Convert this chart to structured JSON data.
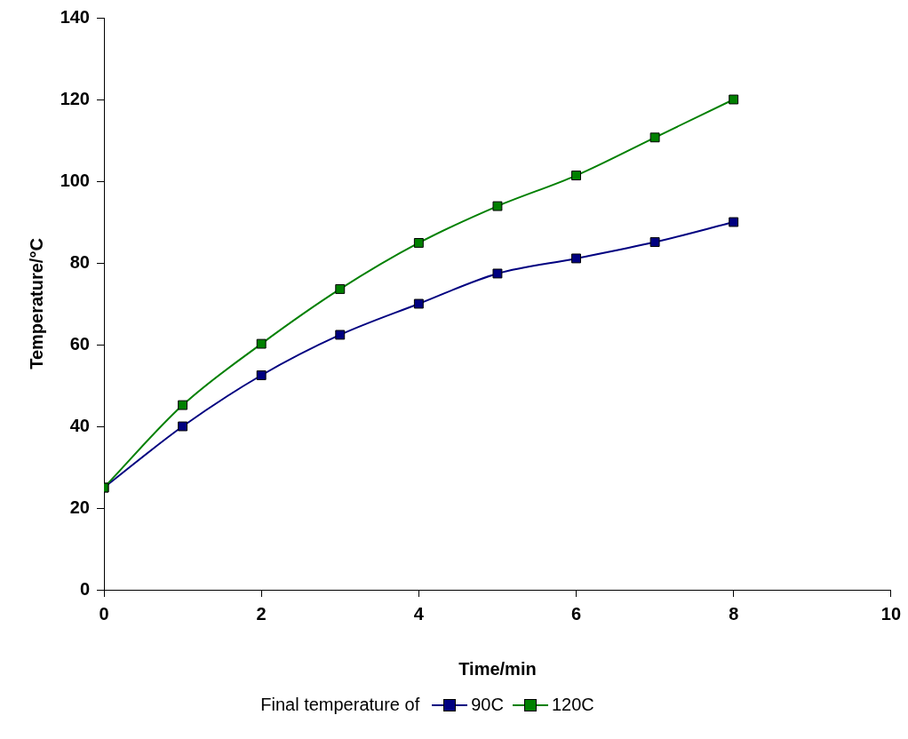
{
  "chart_data": {
    "type": "line",
    "xlabel": "Time/min",
    "ylabel": "Temperature/°C",
    "legend_title": "Final temperature of",
    "x": [
      0,
      1,
      2,
      3,
      4,
      5,
      6,
      7,
      8
    ],
    "xlim": [
      0,
      10
    ],
    "xticks": [
      0,
      2,
      4,
      6,
      8,
      10
    ],
    "ylim": [
      0,
      140
    ],
    "yticks": [
      0,
      20,
      40,
      60,
      80,
      100,
      120,
      140
    ],
    "grid": false,
    "legend": "bottom",
    "marker": "square",
    "line_style": "solid",
    "series": [
      {
        "name": "90C",
        "color": "#000080",
        "values": [
          25,
          40,
          52.5,
          62.4,
          70,
          77.4,
          81.1,
          85.1,
          90
        ]
      },
      {
        "name": "120C",
        "color": "#008000",
        "values": [
          25,
          45.2,
          60.2,
          73.6,
          84.9,
          93.9,
          101.4,
          110.7,
          120
        ]
      }
    ]
  }
}
